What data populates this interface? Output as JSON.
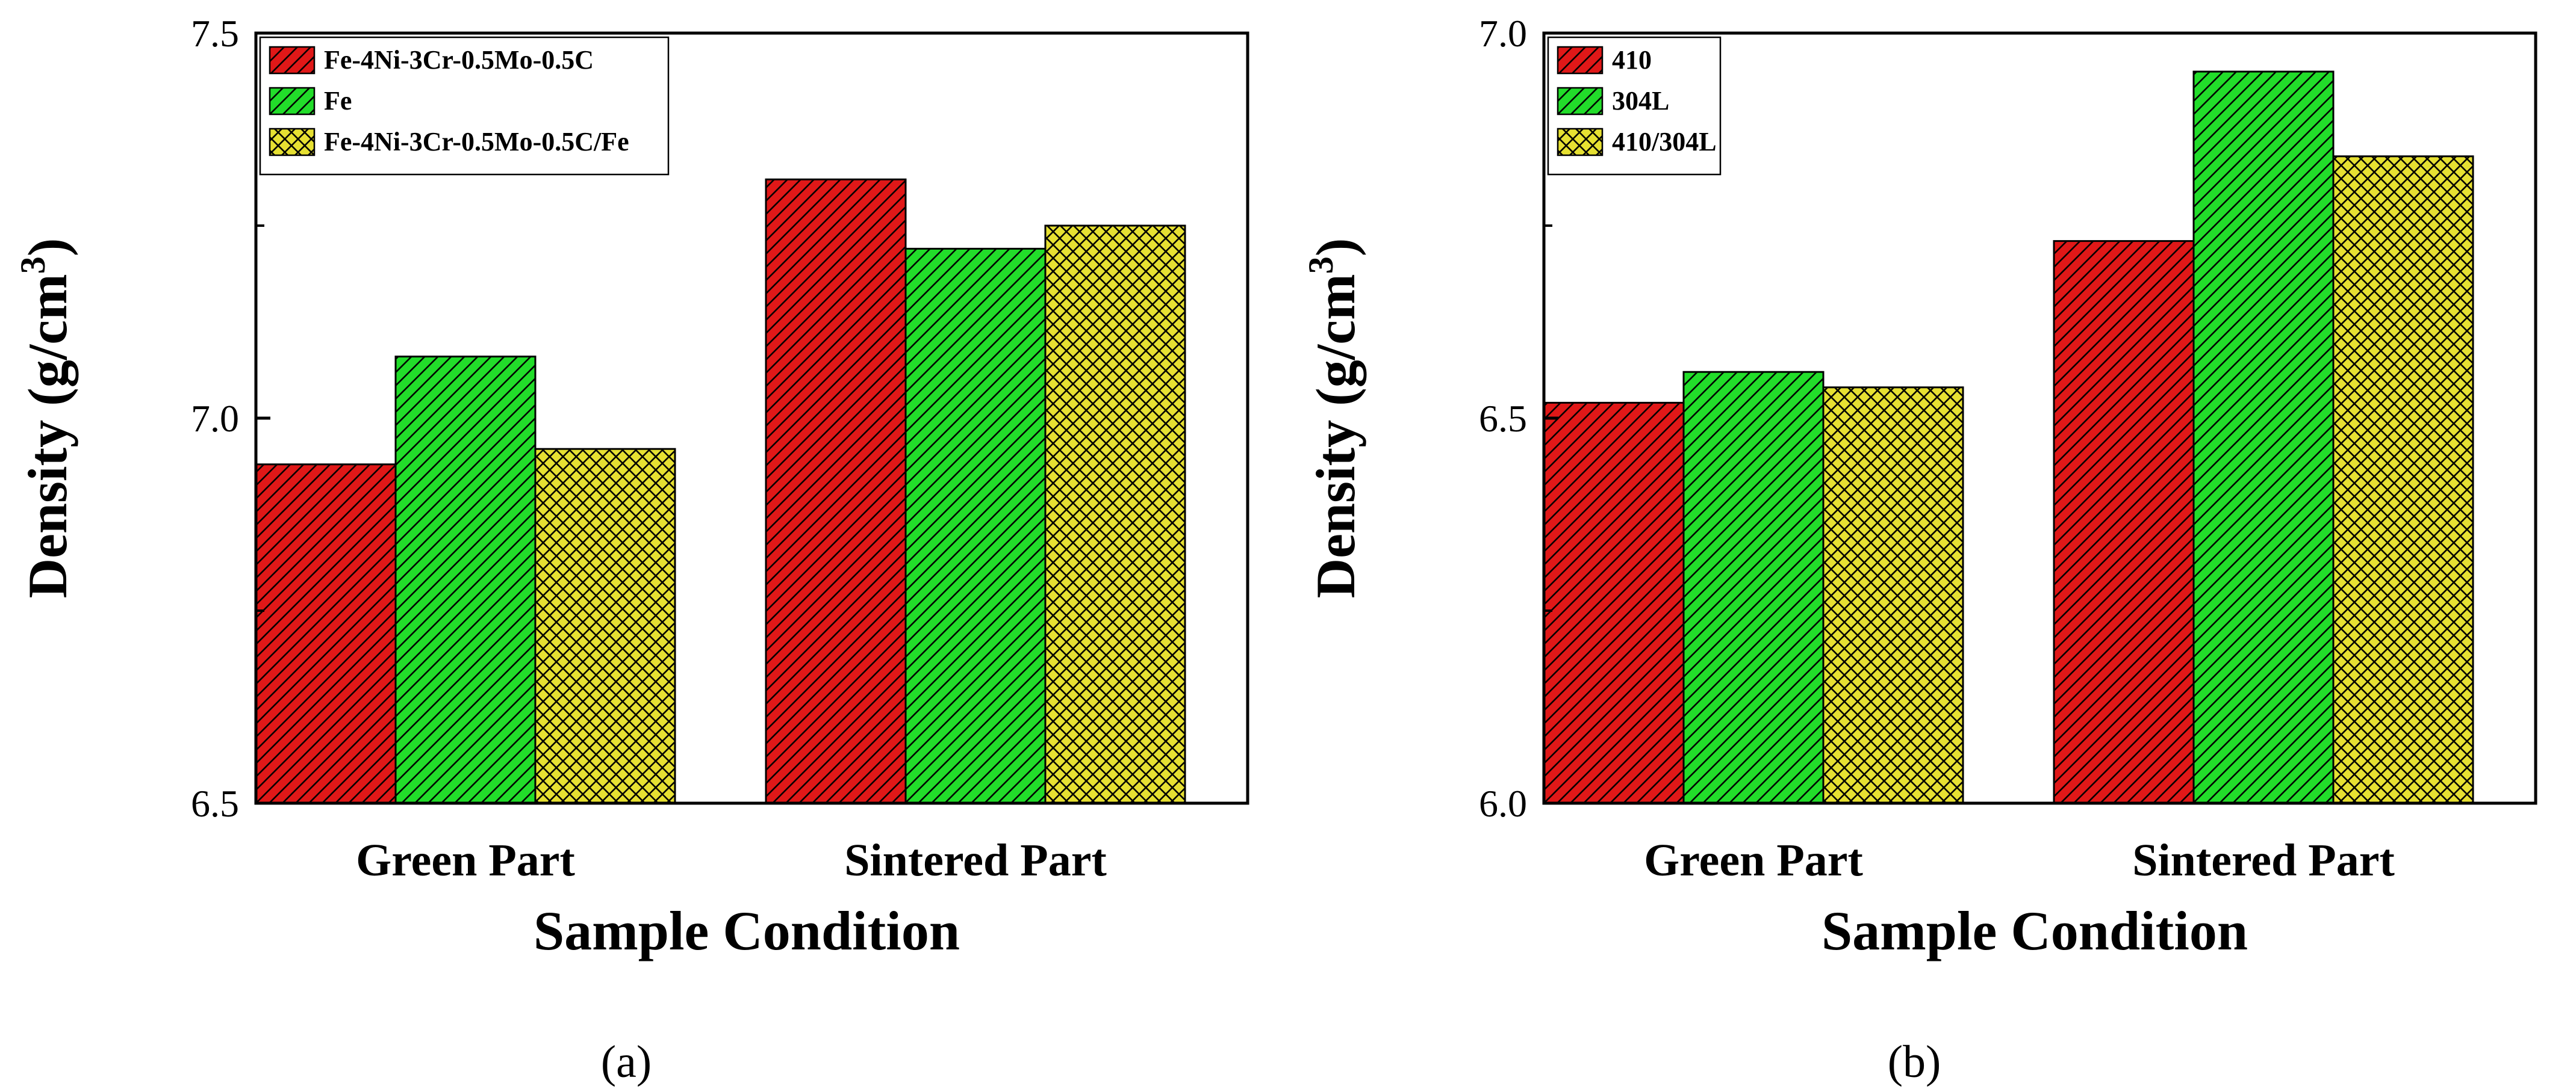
{
  "charts": [
    {
      "id": "a",
      "sub_label": "(a)",
      "chart_data": {
        "type": "bar",
        "categories": [
          "Green Part",
          "Sintered Part"
        ],
        "series": [
          {
            "name": "Fe-4Ni-3Cr-0.5Mo-0.5C",
            "values": [
              6.94,
              7.31
            ],
            "color": "#e01818",
            "pattern": "diag"
          },
          {
            "name": "Fe",
            "values": [
              7.08,
              7.22
            ],
            "color": "#22dd2a",
            "pattern": "diag"
          },
          {
            "name": "Fe-4Ni-3Cr-0.5Mo-0.5C/Fe",
            "values": [
              6.96,
              7.25
            ],
            "color": "#e6e032",
            "pattern": "cross"
          }
        ],
        "title": "",
        "xlabel": "Sample Condition",
        "ylabel": "Density (g/cm3)",
        "ylim": [
          6.5,
          7.5
        ],
        "yticks": [
          "6.5",
          "7.0",
          "7.5"
        ],
        "legend_position": "top-left"
      }
    },
    {
      "id": "b",
      "sub_label": "(b)",
      "chart_data": {
        "type": "bar",
        "categories": [
          "Green Part",
          "Sintered Part"
        ],
        "series": [
          {
            "name": "410",
            "values": [
              6.52,
              6.73
            ],
            "color": "#e01818",
            "pattern": "diag"
          },
          {
            "name": "304L",
            "values": [
              6.56,
              6.95
            ],
            "color": "#22dd2a",
            "pattern": "diag"
          },
          {
            "name": "410/304L",
            "values": [
              6.54,
              6.84
            ],
            "color": "#e6e032",
            "pattern": "cross"
          }
        ],
        "title": "",
        "xlabel": "Sample Condition",
        "ylabel": "Density (g/cm3)",
        "ylim": [
          6.0,
          7.0
        ],
        "yticks": [
          "6.0",
          "6.5",
          "7.0"
        ],
        "legend_position": "top-left"
      }
    }
  ]
}
